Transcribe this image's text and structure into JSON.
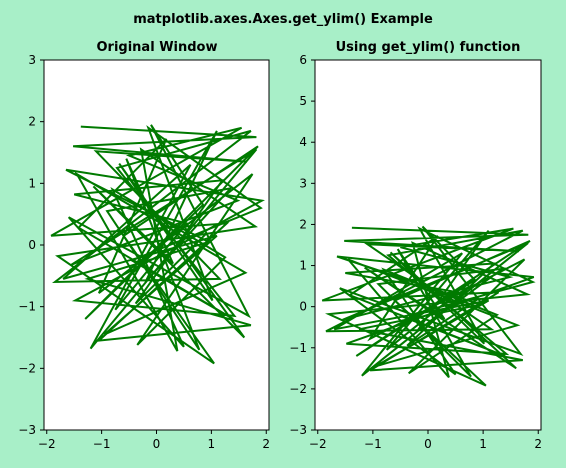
{
  "figure": {
    "title": "matplotlib.axes.Axes.get_ylim() Example",
    "background": "#a8efc8",
    "line_color": "#007a00"
  },
  "chart_data": [
    {
      "type": "line",
      "title": "Original Window",
      "xlabel": "",
      "ylabel": "",
      "xlim": [
        -2.05,
        2.05
      ],
      "ylim": [
        -3,
        3
      ],
      "xticks": [
        -2,
        -1,
        0,
        1,
        2
      ],
      "xtick_labels": [
        "−2",
        "−1",
        "0",
        "1",
        "2"
      ],
      "yticks": [
        -3,
        -2,
        -1,
        0,
        1,
        2,
        3
      ],
      "ytick_labels": [
        "−3",
        "−2",
        "−1",
        "0",
        "1",
        "2",
        "3"
      ],
      "grid": false,
      "series": [
        {
          "x": [
            -1.38,
            1.82,
            -1.52,
            1.65,
            -1.1,
            1.15,
            -1.85,
            1.72,
            -0.72,
            1.42,
            -1.48,
            1.92,
            -1.65,
            0.95,
            -1.25,
            1.72,
            -1.05,
            1.28,
            -1.92,
            1.55,
            -0.5,
            1.48,
            -1.55,
            1.82,
            -1.2,
            0.62,
            -1.7,
            1.1,
            -0.95,
            1.62,
            -1.45,
            0.38,
            -0.28,
            1.8,
            -1.8,
            1.05,
            -0.6,
            1.85,
            -1.3,
            0.85,
            -0.1,
            1.68,
            -1.6,
            0.5,
            -0.8,
            1.25,
            -0.35,
            1.75,
            -1.05,
            0.18,
            -1.42,
            1.4,
            -0.45,
            1.9,
            -0.15,
            1.02,
            -0.68,
            1.6,
            -1.15,
            0.3,
            -0.55,
            0.78,
            -0.9,
            1.35,
            -0.2,
            1.1,
            -0.75,
            0.55,
            -1.5,
            1.2,
            -0.38,
            0.9
          ],
          "y": [
            1.92,
            1.75,
            1.6,
            1.35,
            1.52,
            -0.55,
            -0.6,
            1.85,
            1.25,
            -1.15,
            -0.9,
            0.72,
            1.22,
            0.05,
            -0.55,
            -1.3,
            -1.55,
            0.35,
            0.15,
            1.9,
            1.45,
            0.72,
            -0.32,
            1.55,
            -1.68,
            1.3,
            -0.55,
            0.15,
            -1.45,
            -0.45,
            1.15,
            -1.72,
            1.55,
            0.3,
            -0.18,
            -1.92,
            0.15,
            1.6,
            -1.2,
            0.65,
            1.95,
            -1.15,
            0.45,
            -1.65,
            0.9,
            -0.2,
            -1.62,
            1.15,
            -0.78,
            1.72,
            0.28,
            -1.2,
            -0.25,
            0.6,
            1.9,
            -0.9,
            1.32,
            -1.5,
            0.95,
            -0.3,
            1.4,
            -1.7,
            0.55,
            0.92,
            -0.6,
            1.85,
            -1.05,
            0.35,
            0.82,
            1.05,
            -0.95,
            0.18
          ]
        }
      ]
    },
    {
      "type": "line",
      "title": "Using get_ylim() function",
      "xlabel": "",
      "ylabel": "",
      "xlim": [
        -2.05,
        2.05
      ],
      "ylim": [
        -3,
        6
      ],
      "xticks": [
        -2,
        -1,
        0,
        1,
        2
      ],
      "xtick_labels": [
        "−2",
        "−1",
        "0",
        "1",
        "2"
      ],
      "yticks": [
        -3,
        -2,
        -1,
        0,
        1,
        2,
        3,
        4,
        5,
        6
      ],
      "ytick_labels": [
        "−3",
        "−2",
        "−1",
        "0",
        "1",
        "2",
        "3",
        "4",
        "5",
        "6"
      ],
      "grid": false,
      "series": [
        {
          "x": [
            -1.38,
            1.82,
            -1.52,
            1.65,
            -1.1,
            1.15,
            -1.85,
            1.72,
            -0.72,
            1.42,
            -1.48,
            1.92,
            -1.65,
            0.95,
            -1.25,
            1.72,
            -1.05,
            1.28,
            -1.92,
            1.55,
            -0.5,
            1.48,
            -1.55,
            1.82,
            -1.2,
            0.62,
            -1.7,
            1.1,
            -0.95,
            1.62,
            -1.45,
            0.38,
            -0.28,
            1.8,
            -1.8,
            1.05,
            -0.6,
            1.85,
            -1.3,
            0.85,
            -0.1,
            1.68,
            -1.6,
            0.5,
            -0.8,
            1.25,
            -0.35,
            1.75,
            -1.05,
            0.18,
            -1.42,
            1.4,
            -0.45,
            1.9,
            -0.15,
            1.02,
            -0.68,
            1.6,
            -1.15,
            0.3,
            -0.55,
            0.78,
            -0.9,
            1.35,
            -0.2,
            1.1,
            -0.75,
            0.55,
            -1.5,
            1.2,
            -0.38,
            0.9
          ],
          "y": [
            1.92,
            1.75,
            1.6,
            1.35,
            1.52,
            -0.55,
            -0.6,
            1.85,
            1.25,
            -1.15,
            -0.9,
            0.72,
            1.22,
            0.05,
            -0.55,
            -1.3,
            -1.55,
            0.35,
            0.15,
            1.9,
            1.45,
            0.72,
            -0.32,
            1.55,
            -1.68,
            1.3,
            -0.55,
            0.15,
            -1.45,
            -0.45,
            1.15,
            -1.72,
            1.55,
            0.3,
            -0.18,
            -1.92,
            0.15,
            1.6,
            -1.2,
            0.65,
            1.95,
            -1.15,
            0.45,
            -1.65,
            0.9,
            -0.2,
            -1.62,
            1.15,
            -0.78,
            1.72,
            0.28,
            -1.2,
            -0.25,
            0.6,
            1.9,
            -0.9,
            1.32,
            -1.5,
            0.95,
            -0.3,
            1.4,
            -1.7,
            0.55,
            0.92,
            -0.6,
            1.85,
            -1.05,
            0.35,
            0.82,
            1.05,
            -0.95,
            0.18
          ]
        }
      ]
    }
  ]
}
